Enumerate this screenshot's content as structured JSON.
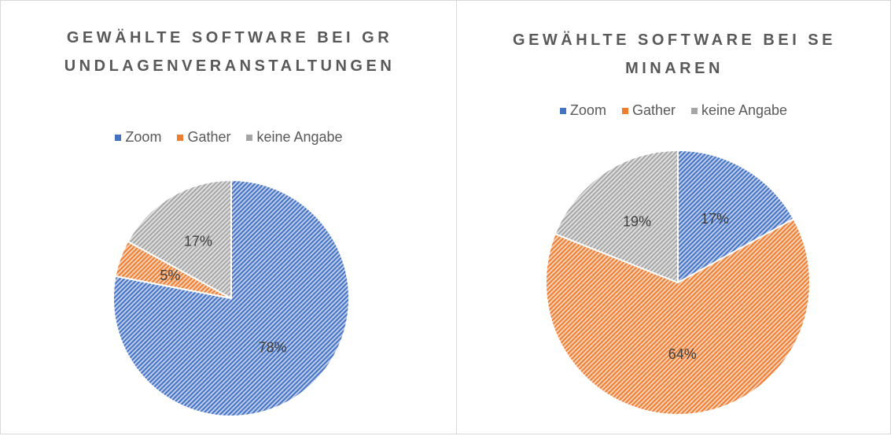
{
  "chart_data": [
    {
      "type": "pie",
      "title": "GEWÄHLTE SOFTWARE BEI GRUNDLAGENVERANSTALTUNGEN",
      "categories": [
        "Zoom",
        "Gather",
        "keine Angabe"
      ],
      "values": [
        78,
        5,
        17
      ],
      "value_labels": [
        "78%",
        "5%",
        "17%"
      ],
      "colors": [
        "#4472c4",
        "#ed7d31",
        "#a5a5a5"
      ],
      "legend": "top"
    },
    {
      "type": "pie",
      "title": "GEWÄHLTE SOFTWARE BEI SEMINAREN",
      "categories": [
        "Zoom",
        "Gather",
        "keine Angabe"
      ],
      "values": [
        17,
        64,
        19
      ],
      "value_labels": [
        "17%",
        "64%",
        "19%"
      ],
      "colors": [
        "#4472c4",
        "#ed7d31",
        "#a5a5a5"
      ],
      "legend": "top"
    }
  ]
}
